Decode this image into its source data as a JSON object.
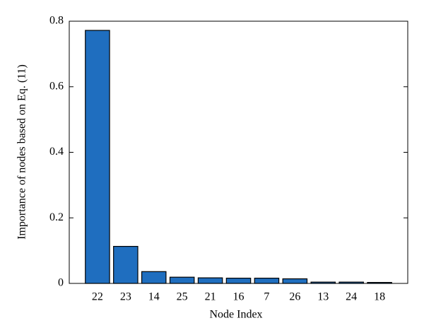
{
  "chart_data": {
    "type": "bar",
    "x_label": "Node Index",
    "y_label": "Importance of nodes based on Eq. (11)",
    "categories": [
      "22",
      "23",
      "14",
      "25",
      "21",
      "16",
      "7",
      "26",
      "13",
      "24",
      "18"
    ],
    "values": [
      0.772,
      0.113,
      0.036,
      0.019,
      0.017,
      0.016,
      0.016,
      0.014,
      0.004,
      0.004,
      0.003
    ],
    "color": "#1f6ebf",
    "ylim": [
      0,
      0.8
    ],
    "yticks": [
      0,
      0.2,
      0.4,
      0.6,
      0.8
    ],
    "grid": false
  }
}
